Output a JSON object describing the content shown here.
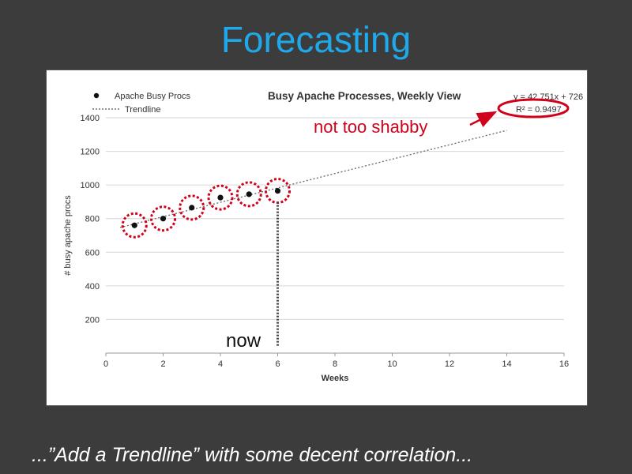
{
  "slide": {
    "title": "Forecasting",
    "caption": "...”Add a Trendline” with some decent correlation..."
  },
  "annotations": {
    "callout": "not too shabby",
    "now_label": "now",
    "highlight_color": "#d0021b"
  },
  "chart_data": {
    "type": "scatter",
    "title": "Busy Apache Processes, Weekly View",
    "xlabel": "Weeks",
    "ylabel": "# busy apache procs",
    "xlim": [
      0,
      16
    ],
    "ylim": [
      0,
      1400
    ],
    "xticks": [
      0,
      2,
      4,
      6,
      8,
      10,
      12,
      14,
      16
    ],
    "yticks": [
      200,
      400,
      600,
      800,
      1000,
      1200,
      1400
    ],
    "grid": true,
    "legend_position": "top-left",
    "legend": [
      {
        "label": "Apache Busy Procs",
        "marker": "dot"
      },
      {
        "label": "Trendline",
        "marker": "dotted-line"
      }
    ],
    "series": [
      {
        "name": "Apache Busy Procs",
        "x": [
          1,
          2,
          3,
          4,
          5,
          6
        ],
        "y": [
          760,
          800,
          865,
          925,
          945,
          965
        ]
      }
    ],
    "trendline": {
      "slope": 42.751,
      "intercept": 726,
      "x_range": [
        0.5,
        14
      ],
      "equation": "y = 42.751x + 726",
      "r_squared": "R² = 0.9497"
    },
    "now_x": 6
  }
}
